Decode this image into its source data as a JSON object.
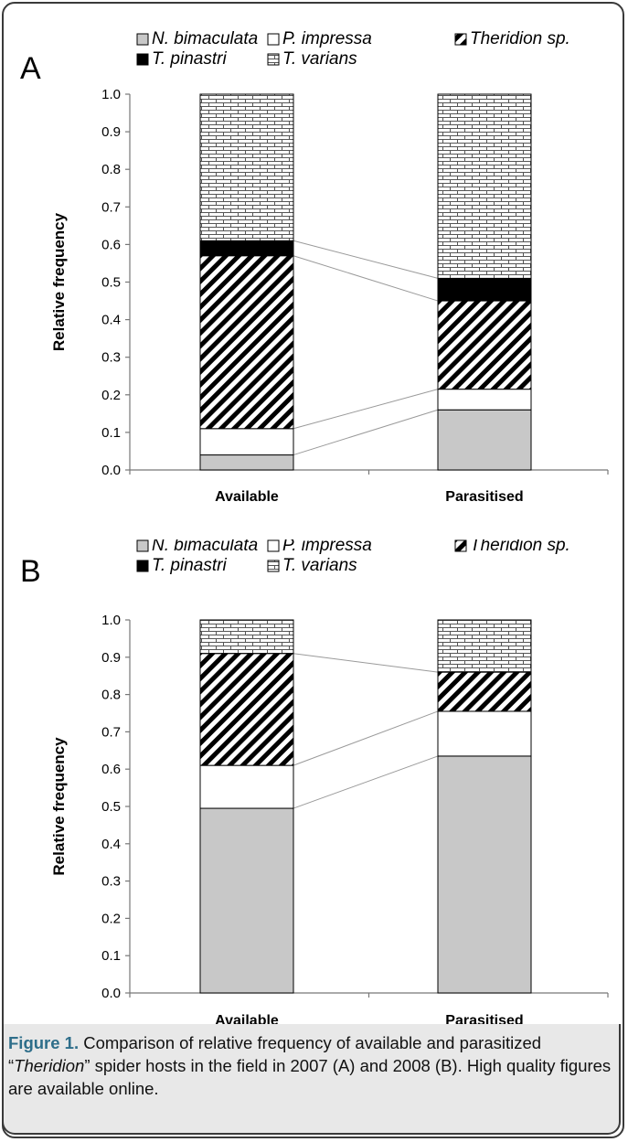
{
  "colors": {
    "N. bimaculata": "#c8c8c8",
    "P. impressa": "#ffffff",
    "T. pinastri": "#000000",
    "caption_label": "#2e6e8a",
    "caption_bg": "#e8e8e8"
  },
  "chart_data": [
    {
      "type": "bar",
      "stacked": true,
      "panel": "A",
      "categories": [
        "Available",
        "Parasitised"
      ],
      "ylabel": "Relative frequency",
      "ylim": [
        0,
        1.0
      ],
      "yticks": [
        "0.0",
        "0.1",
        "0.2",
        "0.3",
        "0.4",
        "0.5",
        "0.6",
        "0.7",
        "0.8",
        "0.9",
        "1.0"
      ],
      "legend_position": "top",
      "connector_lines": true,
      "series": [
        {
          "name": "N. bimaculata",
          "pattern": "gray",
          "values": [
            0.04,
            0.16
          ]
        },
        {
          "name": "P. impressa",
          "pattern": "white",
          "values": [
            0.07,
            0.055
          ]
        },
        {
          "name": "Theridion sp.",
          "pattern": "diagonal",
          "values": [
            0.46,
            0.235
          ]
        },
        {
          "name": "T. pinastri",
          "pattern": "black",
          "values": [
            0.04,
            0.06
          ]
        },
        {
          "name": "T. varians",
          "pattern": "brick",
          "values": [
            0.39,
            0.49
          ]
        }
      ]
    },
    {
      "type": "bar",
      "stacked": true,
      "panel": "B",
      "categories": [
        "Available",
        "Parasitised"
      ],
      "ylabel": "Relative frequency",
      "ylim": [
        0,
        1.0
      ],
      "yticks": [
        "0.0",
        "0.1",
        "0.2",
        "0.3",
        "0.4",
        "0.5",
        "0.6",
        "0.7",
        "0.8",
        "0.9",
        "1.0"
      ],
      "legend_position": "top",
      "connector_lines": true,
      "series": [
        {
          "name": "N. bimaculata",
          "pattern": "gray",
          "values": [
            0.495,
            0.635
          ]
        },
        {
          "name": "P. impressa",
          "pattern": "white",
          "values": [
            0.115,
            0.12
          ]
        },
        {
          "name": "Theridion sp.",
          "pattern": "diagonal",
          "values": [
            0.3,
            0.105
          ]
        },
        {
          "name": "T. pinastri",
          "pattern": "black",
          "values": [
            0.0,
            0.0
          ]
        },
        {
          "name": "T. varians",
          "pattern": "brick",
          "values": [
            0.09,
            0.14
          ]
        }
      ]
    }
  ],
  "caption": {
    "label": "Figure 1.",
    "text_before": " Comparison of relative frequency of available and parasitized “",
    "italic": "Theridion",
    "text_after": "” spider hosts in the field in 2007 (A) and 2008 (B). High quality figures are available online."
  }
}
